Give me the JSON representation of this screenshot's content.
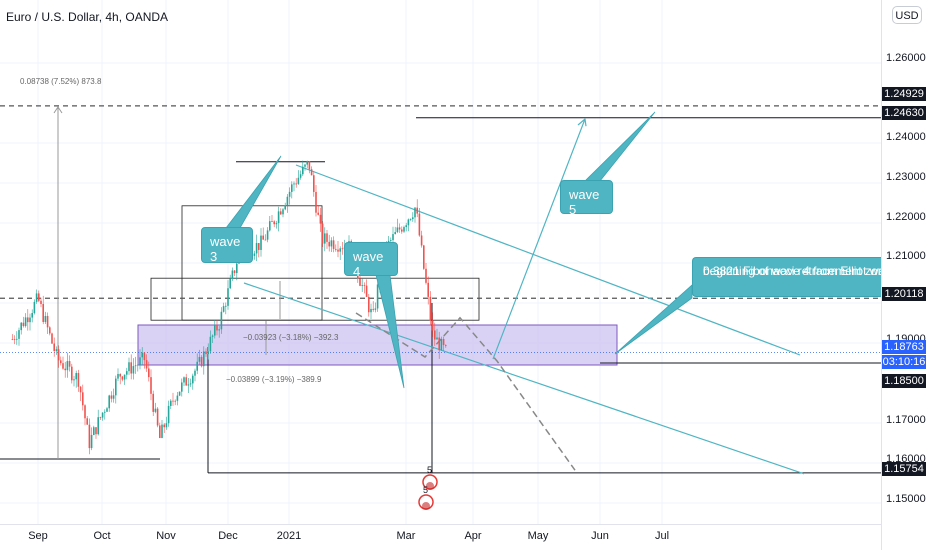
{
  "title": "Euro / U.S. Dollar, 4h, OANDA",
  "currency_button": "USD",
  "price_ticks": [
    "1.26000",
    "1.24000",
    "1.23000",
    "1.22000",
    "1.21000",
    "1.19000",
    "1.17000",
    "1.16000",
    "1.15000"
  ],
  "price_tags": [
    {
      "label": "1.24929",
      "kind": "level"
    },
    {
      "label": "1.24630",
      "kind": "level"
    },
    {
      "label": "1.20118",
      "kind": "level"
    },
    {
      "label": "1.18763",
      "kind": "last"
    },
    {
      "label": "03:10:16",
      "kind": "last"
    },
    {
      "label": "1.18500",
      "kind": "level"
    },
    {
      "label": "1.15754",
      "kind": "level"
    }
  ],
  "time_ticks": [
    "Sep",
    "Oct",
    "Nov",
    "Dec",
    "2021",
    "Mar",
    "Apr",
    "May",
    "Jun",
    "Jul"
  ],
  "annotations": {
    "wave3": "wave 3",
    "wave4": "wave 4",
    "wave5": "wave 5",
    "fib_line1": "0.3821 Fibonacci retracement zone",
    "fib_line2": "beginning of wave 4 from Elliot wa",
    "measure_top": "0.08738 (7.52%) 873.8",
    "measure_mid": "−0.03923 (−3.18%) −392.3",
    "measure_low": "−0.03899 (−3.19%) −389.9",
    "bubble1": "5",
    "bubble2": "5"
  },
  "colors": {
    "up": "#26a69a",
    "down": "#ef5350",
    "channel": "#4fb5c3",
    "zone": "#ccc3f0",
    "zone_border": "#7e57c2",
    "last_price": "#2962ff"
  },
  "chart_data": {
    "type": "candlestick",
    "title": "Euro / U.S. Dollar, 4h, OANDA",
    "y_unit": "USD",
    "ylim": [
      1.145,
      1.27
    ],
    "x_range": [
      "Sep 2020",
      "Jul 2021"
    ],
    "key_levels": [
      1.24929,
      1.2463,
      1.20118,
      1.18763,
      1.185,
      1.15754
    ],
    "path": [
      [
        "2020-08-20",
        1.191
      ],
      [
        "2020-09-01",
        1.201
      ],
      [
        "2020-09-10",
        1.186
      ],
      [
        "2020-09-20",
        1.181
      ],
      [
        "2020-09-25",
        1.165
      ],
      [
        "2020-10-09",
        1.182
      ],
      [
        "2020-10-21",
        1.186
      ],
      [
        "2020-10-28",
        1.166
      ],
      [
        "2020-11-04",
        1.177
      ],
      [
        "2020-11-15",
        1.184
      ],
      [
        "2020-11-25",
        1.195
      ],
      [
        "2020-12-04",
        1.212
      ],
      [
        "2020-12-15",
        1.215
      ],
      [
        "2020-12-30",
        1.23
      ],
      [
        "2021-01-06",
        1.235
      ],
      [
        "2021-01-12",
        1.216
      ],
      [
        "2021-01-25",
        1.214
      ],
      [
        "2021-02-05",
        1.196
      ],
      [
        "2021-02-10",
        1.213
      ],
      [
        "2021-02-25",
        1.224
      ],
      [
        "2021-03-05",
        1.192
      ],
      [
        "2021-03-12",
        1.187
      ]
    ]
  }
}
